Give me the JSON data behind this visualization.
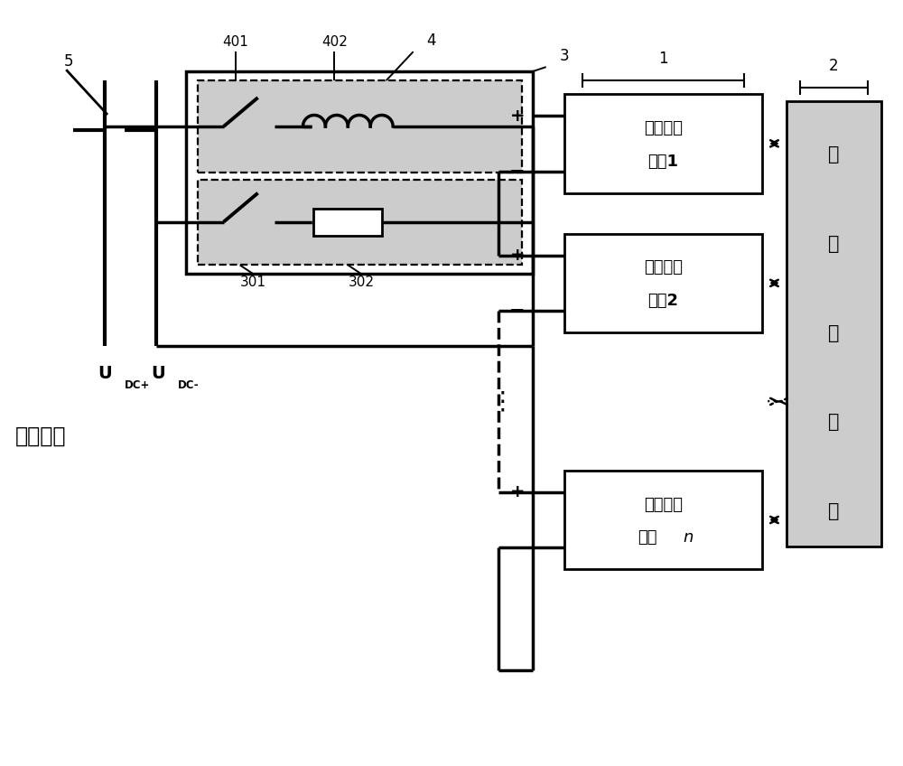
{
  "bg_color": "#ffffff",
  "line_color": "#000000",
  "gray_fill": "#cccccc",
  "fig_width": 10.0,
  "fig_height": 8.48,
  "label_5": "5",
  "label_4": "4",
  "label_3": "3",
  "label_401": "401",
  "label_402": "402",
  "label_301": "301",
  "label_302": "302",
  "label_1": "1",
  "label_2": "2",
  "dc_label": "直流电网",
  "controller_chars": [
    "阵",
    "列",
    "控",
    "制",
    "器"
  ],
  "fw_line1": "飞轮储能",
  "fw_line2_list": [
    "单元1",
    "单元2",
    "单元n"
  ],
  "fw_line2_n_prefix": "单元",
  "udc_plus_main": "U",
  "udc_plus_sub": "DC+",
  "udc_minus_main": "U",
  "udc_minus_sub": "DC-"
}
